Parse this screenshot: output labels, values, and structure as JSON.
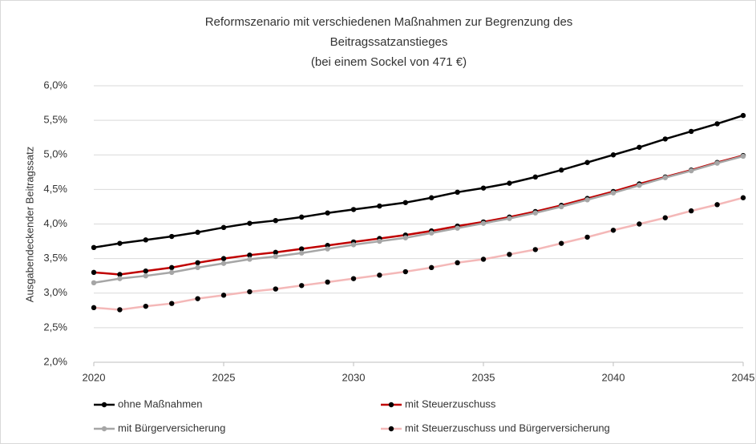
{
  "chart_data": {
    "type": "line",
    "title": [
      "Reformszenario mit verschiedenen Maßnahmen zur Begrenzung des",
      "Beitragssatzanstieges",
      "(bei einem Sockel von 471 €)"
    ],
    "y_label": "Ausgabendeckender Beitragssatz",
    "x": [
      2020,
      2021,
      2022,
      2023,
      2024,
      2025,
      2026,
      2027,
      2028,
      2029,
      2030,
      2031,
      2032,
      2033,
      2034,
      2035,
      2036,
      2037,
      2038,
      2039,
      2040,
      2041,
      2042,
      2043,
      2044,
      2045
    ],
    "xlim": [
      2020,
      2045
    ],
    "xticks": [
      2020,
      2025,
      2030,
      2035,
      2040,
      2045
    ],
    "ylim": [
      2.0,
      6.0
    ],
    "yticks": [
      {
        "value": 2.0,
        "label": "2,0%"
      },
      {
        "value": 2.5,
        "label": "2,5%"
      },
      {
        "value": 3.0,
        "label": "3,0%"
      },
      {
        "value": 3.5,
        "label": "3,5%"
      },
      {
        "value": 4.0,
        "label": "4,0%"
      },
      {
        "value": 4.5,
        "label": "4,5%"
      },
      {
        "value": 5.0,
        "label": "5,0%"
      },
      {
        "value": 5.5,
        "label": "5,5%"
      },
      {
        "value": 6.0,
        "label": "6,0%"
      }
    ],
    "grid": true,
    "legend": "bottom",
    "series": [
      {
        "name": "ohne Maßnahmen",
        "color": "#000000",
        "marker_color": "#000000",
        "values": [
          3.66,
          3.72,
          3.77,
          3.82,
          3.88,
          3.95,
          4.01,
          4.05,
          4.1,
          4.16,
          4.21,
          4.26,
          4.31,
          4.38,
          4.46,
          4.52,
          4.59,
          4.68,
          4.78,
          4.89,
          5.0,
          5.11,
          5.23,
          5.34,
          5.45,
          5.57
        ]
      },
      {
        "name": "mit Steuerzuschuss",
        "color": "#c00000",
        "marker_color": "#000000",
        "values": [
          3.3,
          3.27,
          3.32,
          3.37,
          3.44,
          3.5,
          3.55,
          3.59,
          3.64,
          3.69,
          3.74,
          3.79,
          3.84,
          3.9,
          3.97,
          4.03,
          4.1,
          4.18,
          4.27,
          4.37,
          4.47,
          4.58,
          4.68,
          4.78,
          4.89,
          4.99
        ]
      },
      {
        "name": "mit Bürgerversicherung",
        "color": "#a6a6a6",
        "marker_color": "#a6a6a6",
        "values": [
          3.15,
          3.21,
          3.25,
          3.3,
          3.37,
          3.43,
          3.49,
          3.53,
          3.58,
          3.64,
          3.7,
          3.75,
          3.8,
          3.87,
          3.94,
          4.01,
          4.08,
          4.16,
          4.25,
          4.35,
          4.45,
          4.56,
          4.67,
          4.77,
          4.88,
          4.98
        ]
      },
      {
        "name": "mit Steuerzuschuss und Bürgerversicherung",
        "color": "#f4b8b8",
        "marker_color": "#000000",
        "values": [
          2.79,
          2.76,
          2.81,
          2.85,
          2.92,
          2.97,
          3.02,
          3.06,
          3.11,
          3.16,
          3.21,
          3.26,
          3.31,
          3.37,
          3.44,
          3.49,
          3.56,
          3.63,
          3.72,
          3.81,
          3.91,
          4.0,
          4.09,
          4.19,
          4.28,
          4.38
        ]
      }
    ]
  }
}
